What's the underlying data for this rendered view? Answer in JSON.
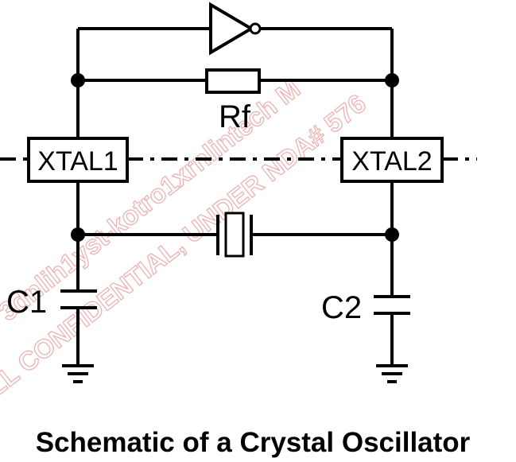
{
  "labels": {
    "resistor": "Rf",
    "pin1": "XTAL1",
    "pin2": "XTAL2",
    "cap1": "C1",
    "cap2": "C2"
  },
  "caption": "Schematic of a Crystal Oscillator",
  "watermark": {
    "line1": "3dnlih1yst-kotro1xrnlintech M",
    "line2": "LL CONFIDENTIAL, UNDER NDA# 576"
  },
  "colors": {
    "watermark": "#e8a0a0",
    "ink": "#000000"
  }
}
